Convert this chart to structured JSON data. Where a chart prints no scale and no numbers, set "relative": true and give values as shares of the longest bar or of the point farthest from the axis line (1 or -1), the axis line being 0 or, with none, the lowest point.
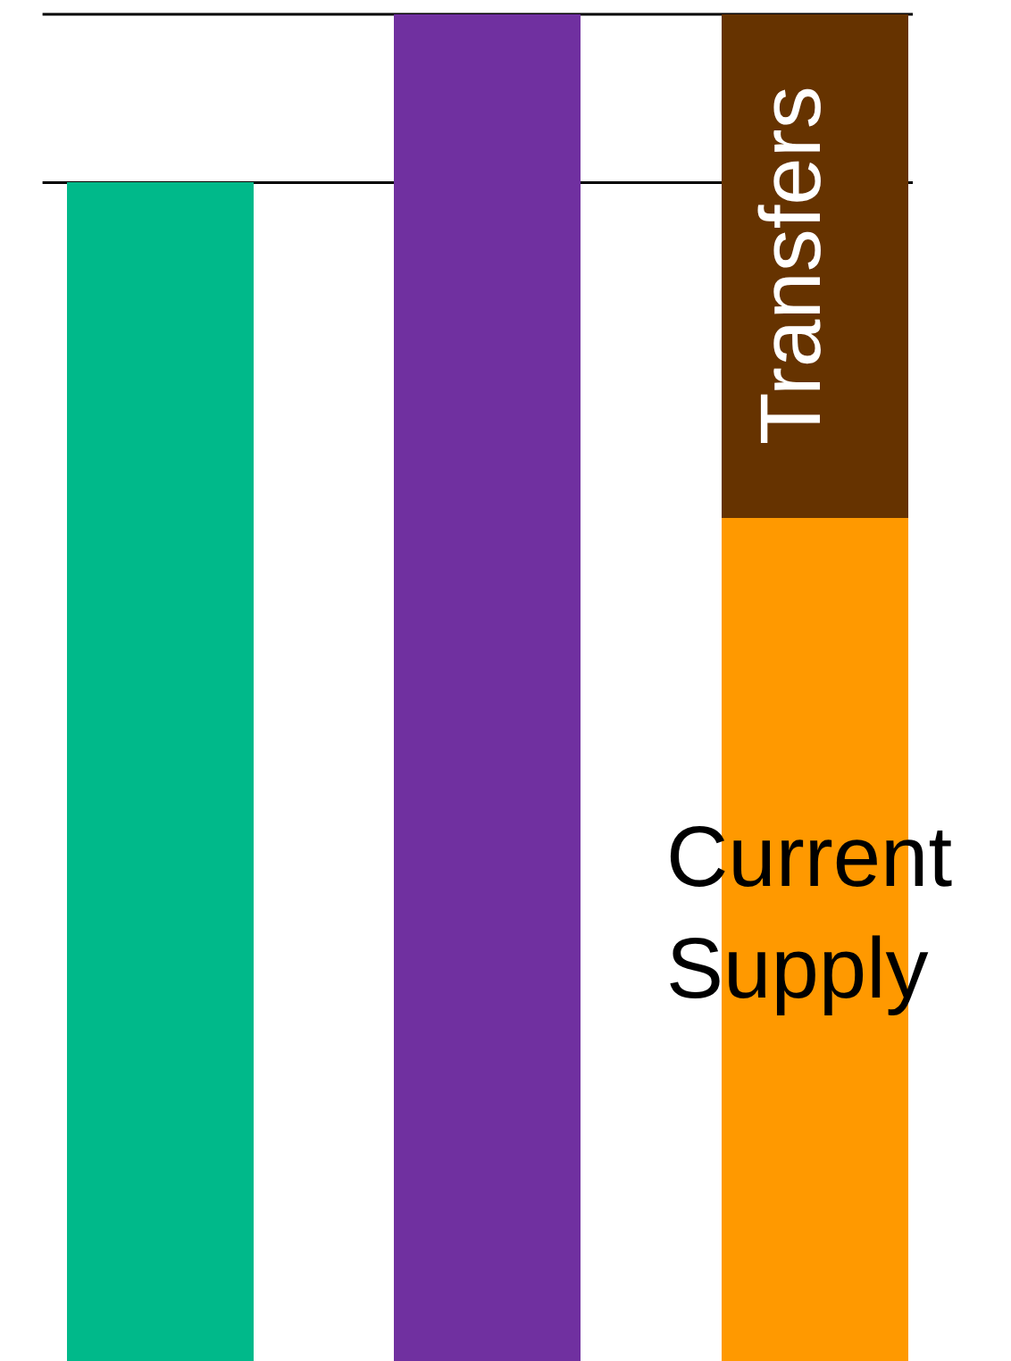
{
  "chart_data": {
    "type": "bar",
    "relative": true,
    "stacked": true,
    "categories": [
      null,
      null,
      null
    ],
    "series": [
      {
        "colors": [
          "#00b98a",
          "#7030a0",
          "#ff9900"
        ],
        "values": [
          0.875,
          1,
          null
        ]
      },
      {
        "name": "Current Supply",
        "color": "#ff9900",
        "values": [
          null,
          null,
          0.626
        ]
      },
      {
        "name": "Transfers",
        "color": "#663300",
        "values": [
          null,
          null,
          0.374
        ]
      }
    ],
    "ref_lines": [
      {
        "axis": "y",
        "value": 1,
        "color": "#000000"
      },
      {
        "axis": "y",
        "value": 0.875,
        "color": "#000000"
      }
    ],
    "legend": false
  }
}
